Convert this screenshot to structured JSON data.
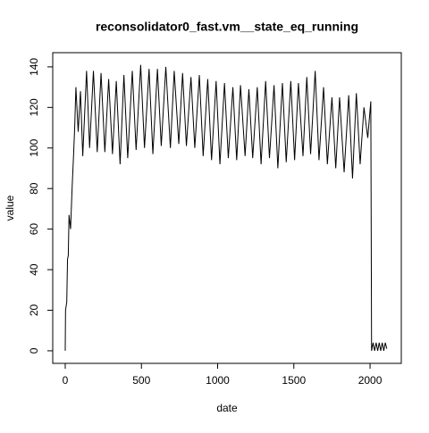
{
  "chart_data": {
    "type": "line",
    "title": "reconsolidator0_fast.vm__state_eq_running",
    "x_label": "date",
    "y_label": "value",
    "x": [
      0,
      2,
      10,
      15,
      20,
      25,
      35,
      45,
      55,
      62,
      70,
      85,
      100,
      115,
      140,
      160,
      185,
      210,
      235,
      260,
      285,
      310,
      335,
      360,
      385,
      410,
      440,
      465,
      495,
      520,
      550,
      575,
      605,
      630,
      660,
      690,
      715,
      745,
      770,
      795,
      825,
      850,
      880,
      905,
      935,
      960,
      990,
      1015,
      1045,
      1070,
      1100,
      1125,
      1150,
      1180,
      1205,
      1230,
      1260,
      1285,
      1315,
      1340,
      1370,
      1395,
      1425,
      1450,
      1480,
      1505,
      1530,
      1560,
      1585,
      1610,
      1640,
      1665,
      1695,
      1720,
      1750,
      1775,
      1800,
      1830,
      1860,
      1885,
      1910,
      1935,
      1960,
      1985,
      2005,
      2010,
      2020,
      2030,
      2040,
      2050,
      2060,
      2070,
      2080,
      2090,
      2100,
      2110
    ],
    "series": [
      {
        "name": "value",
        "color": "#000000",
        "values": [
          0,
          20,
          24,
          45,
          47,
          67,
          60,
          80,
          97,
          110,
          130,
          108,
          128,
          96,
          138,
          100,
          138,
          98,
          137,
          98,
          134,
          97,
          133,
          92,
          136,
          95,
          138,
          99,
          141,
          100,
          139,
          97,
          139,
          101,
          140,
          100,
          138,
          102,
          137,
          101,
          135,
          100,
          136,
          96,
          134,
          94,
          133,
          92,
          132,
          95,
          130,
          94,
          131,
          96,
          129,
          95,
          130,
          92,
          133,
          95,
          131,
          90,
          132,
          93,
          133,
          94,
          132,
          96,
          135,
          97,
          138,
          94,
          130,
          92,
          125,
          90,
          125,
          88,
          126,
          85,
          127,
          92,
          120,
          105,
          123,
          0,
          4,
          0,
          4,
          0,
          4,
          0,
          4,
          0,
          4,
          1
        ]
      }
    ],
    "xlim": [
      -82,
      2205
    ],
    "ylim": [
      -6.2,
      147
    ],
    "xticks": [
      0,
      500,
      1000,
      1500,
      2000
    ],
    "yticks": [
      0,
      20,
      40,
      60,
      80,
      100,
      120,
      140
    ]
  }
}
